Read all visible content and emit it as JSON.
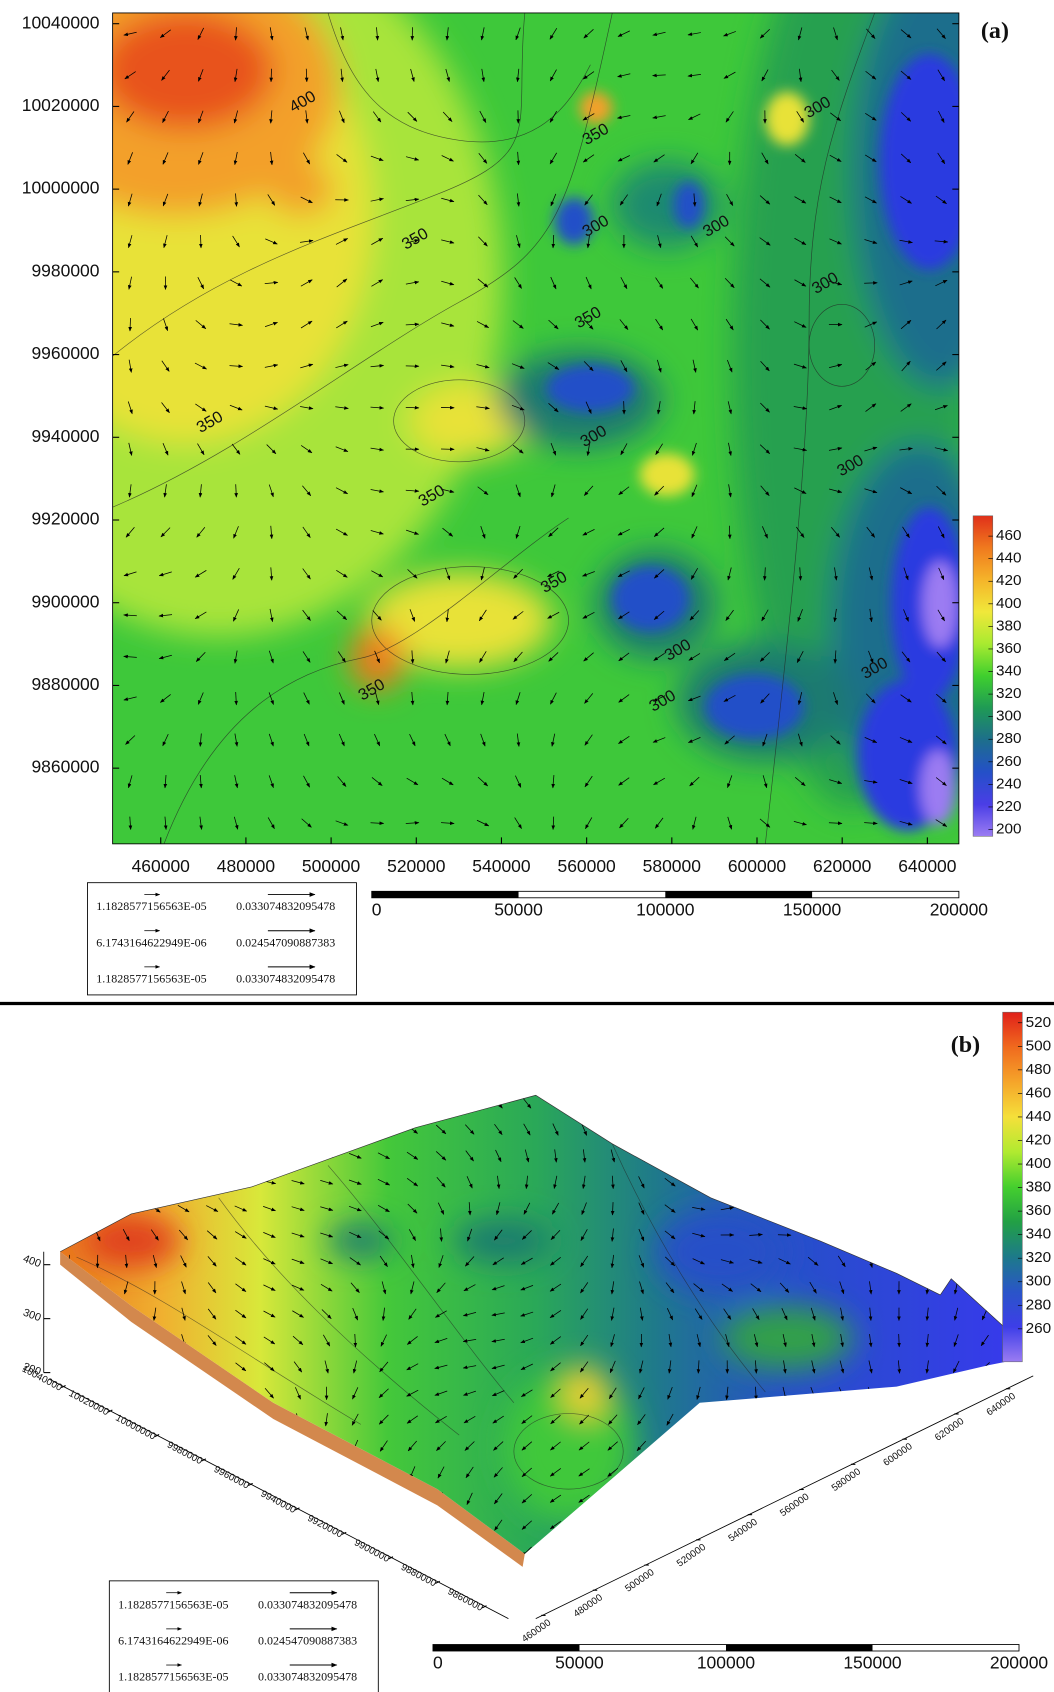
{
  "chart_data": [
    {
      "type": "contour",
      "label": "(a)",
      "xlim": [
        448700,
        647400
      ],
      "ylim": [
        9841700,
        10042600
      ],
      "xticks": [
        460000,
        480000,
        500000,
        520000,
        540000,
        560000,
        580000,
        600000,
        620000,
        640000
      ],
      "yticks": [
        9860000,
        9880000,
        9900000,
        9920000,
        9940000,
        9960000,
        9980000,
        10000000,
        10020000,
        10040000
      ],
      "colorbar": {
        "lim": [
          194,
          478
        ],
        "ticks": [
          200,
          220,
          240,
          260,
          280,
          300,
          320,
          340,
          360,
          380,
          400,
          420,
          440,
          460
        ],
        "colors": [
          "#9b7cf2",
          "#4a3ee6",
          "#2450c8",
          "#1d6e8c",
          "#1f9a55",
          "#3fcf2e",
          "#a8ea30",
          "#f0e83a",
          "#f5b42a",
          "#f07a1e",
          "#e0301a"
        ]
      },
      "contour_labels": [
        {
          "value": 400,
          "x": 493400,
          "y": 10020950
        },
        {
          "value": 350,
          "x": 562200,
          "y": 10013100
        },
        {
          "value": 300,
          "x": 614300,
          "y": 10019600
        },
        {
          "value": 350,
          "x": 519800,
          "y": 9987800
        },
        {
          "value": 300,
          "x": 562200,
          "y": 9990900
        },
        {
          "value": 300,
          "x": 590500,
          "y": 9990900
        },
        {
          "value": 300,
          "x": 616100,
          "y": 9977100
        },
        {
          "value": 350,
          "x": 560400,
          "y": 9968800
        },
        {
          "value": 350,
          "x": 471600,
          "y": 9943500
        },
        {
          "value": 300,
          "x": 561700,
          "y": 9940100
        },
        {
          "value": 300,
          "x": 622000,
          "y": 9933000
        },
        {
          "value": 350,
          "x": 523700,
          "y": 9925700
        },
        {
          "value": 350,
          "x": 552400,
          "y": 9904800
        },
        {
          "value": 300,
          "x": 581500,
          "y": 9888400
        },
        {
          "value": 300,
          "x": 577900,
          "y": 9876100
        },
        {
          "value": 300,
          "x": 627700,
          "y": 9884000
        },
        {
          "value": 350,
          "x": 509600,
          "y": 9878800
        }
      ],
      "vector_legend": [
        [
          "1.1828577156563E-05",
          "0.033074832095478"
        ],
        [
          "6.1743164622949E-06",
          "0.024547090887383"
        ],
        [
          "1.1828577156563E-05",
          "0.033074832095478"
        ]
      ],
      "scale_bar": {
        "lim": [
          0,
          200000
        ],
        "ticks": [
          0,
          50000,
          100000,
          150000,
          200000
        ]
      }
    },
    {
      "type": "surface3d",
      "label": "(b)",
      "xlim": [
        460000,
        640000
      ],
      "ylim": [
        9860000,
        10040000
      ],
      "zlim": [
        200,
        400
      ],
      "xticks": [
        460000,
        480000,
        500000,
        520000,
        540000,
        560000,
        580000,
        600000,
        620000,
        640000
      ],
      "yticks": [
        9860000,
        9880000,
        9900000,
        9920000,
        9940000,
        9960000,
        9980000,
        10000000,
        10020000,
        10040000
      ],
      "zticks": [
        200,
        300,
        400
      ],
      "colorbar": {
        "lim": [
          232,
          529
        ],
        "ticks": [
          260,
          280,
          300,
          320,
          340,
          360,
          380,
          400,
          420,
          440,
          460,
          480,
          500,
          520
        ],
        "colors": [
          "#9b7cf2",
          "#3d3ee8",
          "#2a55c8",
          "#1d7a8a",
          "#22a045",
          "#45cf2e",
          "#b0ea30",
          "#f5e03a",
          "#f5a52a",
          "#f06a1e",
          "#e0201a"
        ]
      },
      "vector_legend": [
        [
          "1.1828577156563E-05",
          "0.033074832095478"
        ],
        [
          "6.1743164622949E-06",
          "0.024547090887383"
        ],
        [
          "1.1828577156563E-05",
          "0.033074832095478"
        ]
      ],
      "scale_bar": {
        "lim": [
          0,
          200000
        ],
        "ticks": [
          0,
          50000,
          100000,
          150000,
          200000
        ]
      }
    }
  ]
}
